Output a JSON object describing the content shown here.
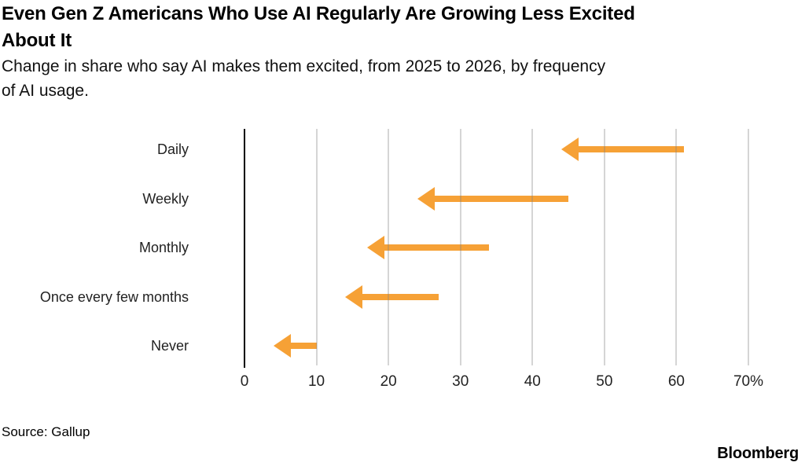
{
  "header": {
    "title_lines": [
      "Even Gen Z Americans Who Use AI Regularly Are Growing Less Excited",
      "About It"
    ],
    "subtitle_lines": [
      "Change in share who say AI makes them excited, from 2025 to 2026, by frequency",
      "of AI usage."
    ]
  },
  "footer": {
    "source": "Source: Gallup",
    "brand": "Bloomberg"
  },
  "chart_data": {
    "type": "arrow",
    "title": "Even Gen Z Americans Who Use AI Regularly Are Growing Less Excited About It",
    "subtitle": "Change in share who say AI makes them excited, from 2025 to 2026, by frequency of AI usage.",
    "description": "Horizontal arrows point leftward from the 2025 value (tail) to the 2026 value (arrowhead tip), showing declining excitement.",
    "categories": [
      "Daily",
      "Weekly",
      "Monthly",
      "Once every few months",
      "Never"
    ],
    "series": [
      {
        "name": "2025",
        "values": [
          61,
          45,
          34,
          27,
          10
        ]
      },
      {
        "name": "2026",
        "values": [
          44,
          24,
          17,
          14,
          4
        ]
      }
    ],
    "xlabel": "",
    "ylabel": "",
    "xlim": [
      0,
      70
    ],
    "x_ticks": [
      0,
      10,
      20,
      30,
      40,
      50,
      60,
      70
    ],
    "x_tick_labels": [
      "0",
      "10",
      "20",
      "30",
      "40",
      "50",
      "60",
      "70%"
    ],
    "grid": true,
    "legend": "none",
    "arrow_color": "#F6A136",
    "axis_color": "#000000",
    "gridline_color": "#D4D4D4",
    "source": "Source: Gallup",
    "brand": "Bloomberg"
  }
}
